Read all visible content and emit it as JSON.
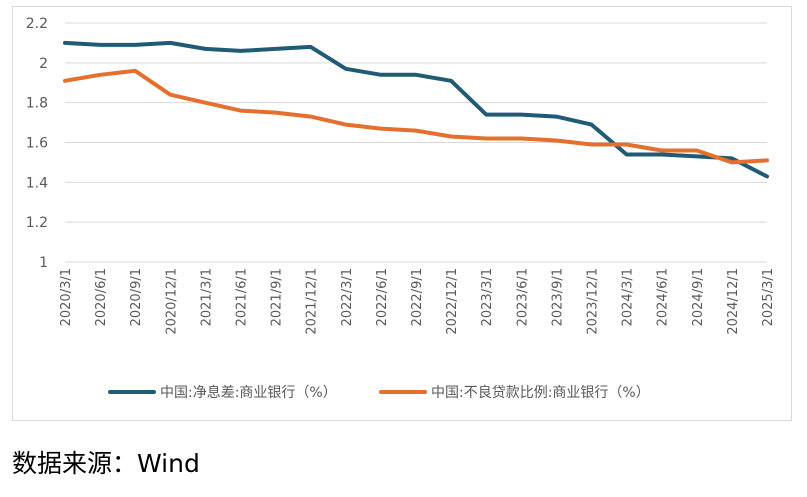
{
  "chart_data": {
    "type": "line",
    "title": "",
    "xlabel": "",
    "ylabel": "",
    "ylim": [
      1,
      2.2
    ],
    "yticks": [
      "1",
      "1.2",
      "1.4",
      "1.6",
      "1.8",
      "2",
      "2.2"
    ],
    "grid": true,
    "legend_position": "bottom",
    "categories": [
      "2020/3/1",
      "2020/6/1",
      "2020/9/1",
      "2020/12/1",
      "2021/3/1",
      "2021/6/1",
      "2021/9/1",
      "2021/12/1",
      "2022/3/1",
      "2022/6/1",
      "2022/9/1",
      "2022/12/1",
      "2023/3/1",
      "2023/6/1",
      "2023/9/1",
      "2023/12/1",
      "2024/3/1",
      "2024/6/1",
      "2024/9/1",
      "2024/12/1",
      "2025/3/1"
    ],
    "series": [
      {
        "name": "中国:净息差:商业银行（%）",
        "color": "#1f5b75",
        "values": [
          2.1,
          2.09,
          2.09,
          2.1,
          2.07,
          2.06,
          2.07,
          2.08,
          1.97,
          1.94,
          1.94,
          1.91,
          1.74,
          1.74,
          1.73,
          1.69,
          1.54,
          1.54,
          1.53,
          1.52,
          1.43
        ]
      },
      {
        "name": "中国:不良贷款比例:商业银行（%）",
        "color": "#e46f2e",
        "values": [
          1.91,
          1.94,
          1.96,
          1.84,
          1.8,
          1.76,
          1.75,
          1.73,
          1.69,
          1.67,
          1.66,
          1.63,
          1.62,
          1.62,
          1.61,
          1.59,
          1.59,
          1.56,
          1.56,
          1.5,
          1.51
        ]
      }
    ]
  },
  "source_text": "数据来源：Wind"
}
